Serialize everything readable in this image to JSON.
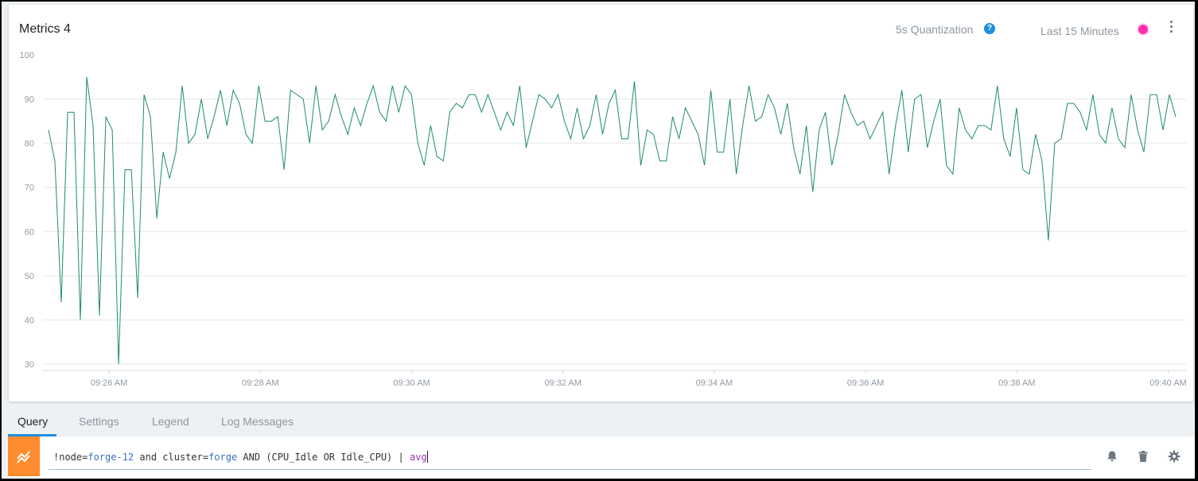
{
  "panel": {
    "title": "Metrics 4",
    "quantization_label": "5s Quantization",
    "help_glyph": "?",
    "time_range_label": "Last 15 Minutes",
    "series_color": "#ff2fb0",
    "line_color": "#1f8a70"
  },
  "chart_data": {
    "type": "line",
    "ylim": [
      30,
      100
    ],
    "y_ticks": [
      30,
      40,
      50,
      60,
      70,
      80,
      90,
      100
    ],
    "y_tick_labels": [
      "30",
      "40",
      "50",
      "60",
      "70",
      "80",
      "90",
      "100"
    ],
    "x_tick_labels": [
      "09:26 AM",
      "09:28 AM",
      "09:30 AM",
      "09:32 AM",
      "09:34 AM",
      "09:36 AM",
      "09:38 AM",
      "09:40 AM"
    ],
    "x_start": "09:25:12",
    "x_end": "09:40:06",
    "grid": true,
    "series": [
      {
        "values": [
          83,
          76,
          44,
          87,
          87,
          40,
          95,
          84,
          41,
          86,
          83,
          30,
          74,
          74,
          45,
          91,
          86,
          63,
          78,
          72,
          78,
          93,
          80,
          82,
          90,
          81,
          86,
          92,
          84,
          92,
          89,
          82,
          80,
          93,
          85,
          85,
          86,
          74,
          92,
          91,
          90,
          80,
          93,
          83,
          85,
          91,
          86,
          82,
          88,
          84,
          89,
          93,
          87,
          85,
          93,
          87,
          93,
          91,
          80,
          75,
          84,
          77,
          76,
          87,
          89,
          88,
          91,
          91,
          87,
          91,
          87,
          83,
          87,
          84,
          93,
          79,
          85,
          91,
          90,
          88,
          91,
          85,
          81,
          88,
          81,
          84,
          91,
          82,
          89,
          92,
          81,
          81,
          94,
          75,
          83,
          82,
          76,
          76,
          86,
          81,
          88,
          85,
          82,
          75,
          92,
          78,
          78,
          90,
          73,
          84,
          93,
          85,
          86,
          91,
          88,
          82,
          89,
          79,
          73,
          84,
          69,
          83,
          87,
          75,
          82,
          91,
          87,
          84,
          85,
          81,
          84,
          87,
          73,
          84,
          92,
          78,
          90,
          91,
          79,
          85,
          90,
          75,
          73,
          88,
          83,
          81,
          84,
          84,
          83,
          93,
          81,
          77,
          88,
          74,
          73,
          82,
          76,
          58,
          80,
          81,
          89,
          89,
          87,
          83,
          91,
          82,
          80,
          88,
          81,
          79,
          91,
          83,
          78,
          91,
          91,
          83,
          91,
          86
        ]
      }
    ]
  },
  "tabs": [
    {
      "label": "Query",
      "active": true
    },
    {
      "label": "Settings",
      "active": false
    },
    {
      "label": "Legend",
      "active": false
    },
    {
      "label": "Log Messages",
      "active": false
    }
  ],
  "query": {
    "prefix": "!node=",
    "node_value": "forge-12",
    "mid": " and cluster=",
    "cluster_value": "forge",
    "rest": " AND (CPU_Idle OR Idle_CPU) | ",
    "operator": "avg"
  },
  "icons": {
    "query_type": "metrics-icon",
    "alert": "bell-icon",
    "delete": "trash-icon",
    "settings": "gear-icon",
    "help": "help-icon",
    "more": "more-vertical-icon"
  },
  "colors": {
    "accent": "#1e8fde",
    "query_icon_bg": "#ff8c2e"
  }
}
